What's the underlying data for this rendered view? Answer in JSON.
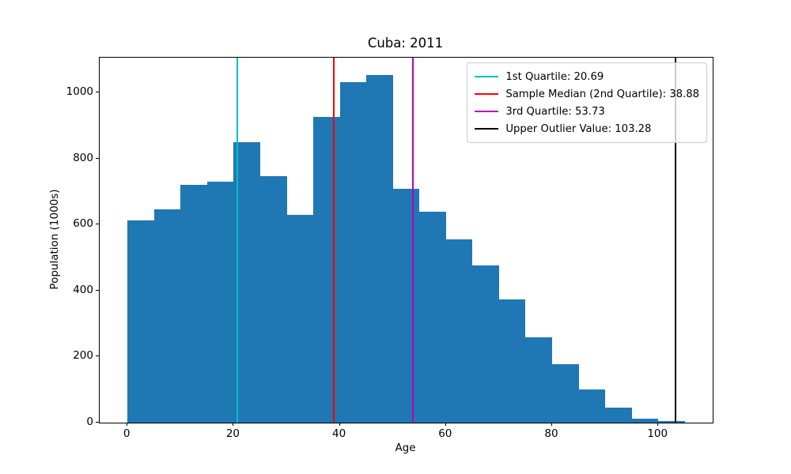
{
  "title": "Cuba: 2011",
  "axes": {
    "xlabel": "Age",
    "ylabel": "Population (1000s)"
  },
  "colors": {
    "bar": "#1f77b4",
    "quartile1": "#00bfbf",
    "median": "#ff0000",
    "quartile3": "#bf00bf",
    "outlier": "#000000",
    "legend_border": "#cccccc",
    "spine": "#000000"
  },
  "chart_data": {
    "type": "bar",
    "subtype": "histogram",
    "title": "Cuba: 2011",
    "xlabel": "Age",
    "ylabel": "Population (1000s)",
    "bin_edges": [
      0,
      5,
      10,
      15,
      20,
      25,
      30,
      35,
      40,
      45,
      50,
      55,
      60,
      65,
      70,
      75,
      80,
      85,
      90,
      95,
      100,
      105
    ],
    "values": [
      613,
      646,
      720,
      730,
      849,
      747,
      629,
      926,
      1031,
      1053,
      708,
      639,
      555,
      476,
      373,
      258,
      177,
      100,
      45,
      13,
      4
    ],
    "xlim": [
      -5.25,
      110.25
    ],
    "ylim": [
      0,
      1106
    ],
    "xticks": [
      0,
      20,
      40,
      60,
      80,
      100
    ],
    "yticks": [
      0,
      200,
      400,
      600,
      800,
      1000
    ],
    "grid": false,
    "legend_position": "upper right",
    "vlines": [
      {
        "x": 20.69,
        "color": "#00bfbf",
        "label": "1st Quartile: 20.69",
        "name": "quartile1-line"
      },
      {
        "x": 38.88,
        "color": "#ff0000",
        "label": "Sample Median (2nd Quartile): 38.88",
        "name": "median-line"
      },
      {
        "x": 53.73,
        "color": "#bf00bf",
        "label": "3rd Quartile: 53.73",
        "name": "quartile3-line"
      },
      {
        "x": 103.28,
        "color": "#000000",
        "label": "Upper Outlier Value: 103.28",
        "name": "upper-outlier-line"
      }
    ]
  }
}
